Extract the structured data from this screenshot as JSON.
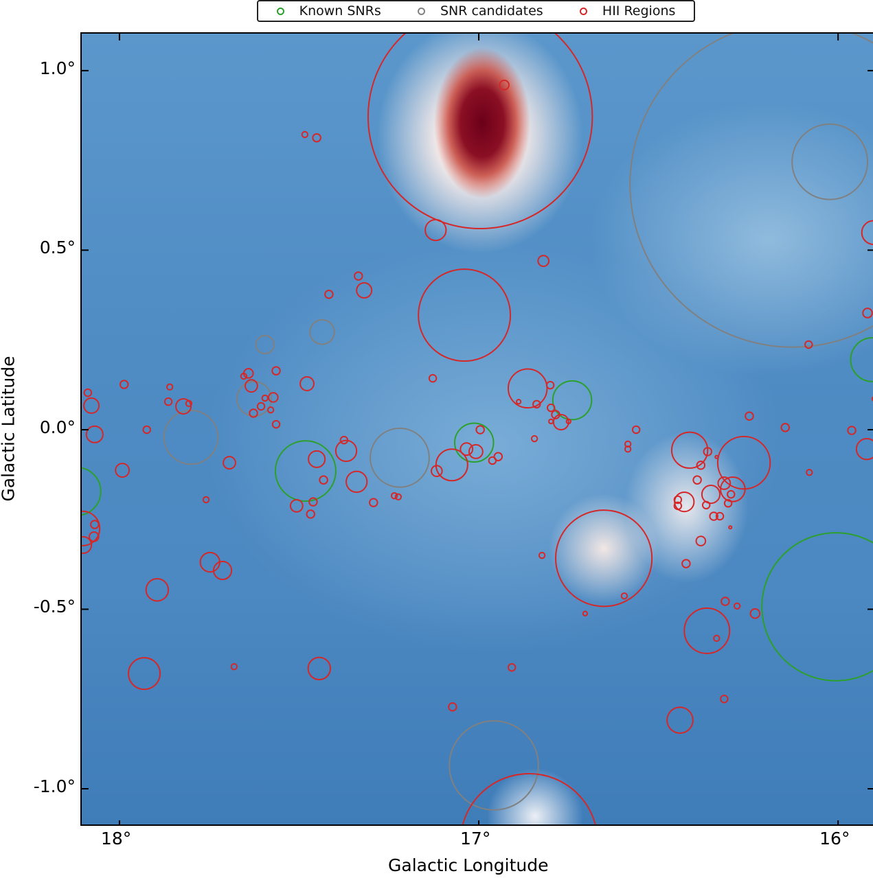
{
  "chart_data": {
    "type": "scatter",
    "xlabel": "Galactic Longitude",
    "ylabel": "Galactic Latitude",
    "xlim": [
      18.105,
      15.899
    ],
    "ylim": [
      -1.107,
      1.103
    ],
    "xticks": [
      {
        "value": 18,
        "label": "18°"
      },
      {
        "value": 17,
        "label": "17°"
      },
      {
        "value": 16,
        "label": "16°"
      }
    ],
    "yticks": [
      {
        "value": 1.0,
        "label": "1.0°"
      },
      {
        "value": 0.5,
        "label": "0.5°"
      },
      {
        "value": 0.0,
        "label": "0.0°"
      },
      {
        "value": -0.5,
        "label": "-0.5°"
      },
      {
        "value": -1.0,
        "label": "-1.0°"
      }
    ],
    "legend": {
      "placement": "top-center",
      "entries": [
        "Known SNRs",
        "SNR candidates",
        "HII Regions"
      ]
    },
    "series": [
      {
        "name": "Known SNRs",
        "color": "#2ca02c",
        "circles": [
          [
            16.74,
            0.082,
            0.054
          ],
          [
            17.013,
            -0.036,
            0.054
          ],
          [
            17.482,
            -0.115,
            0.084
          ],
          [
            16.006,
            -0.493,
            0.206
          ],
          [
            15.904,
            0.195,
            0.061
          ],
          [
            18.119,
            -0.172,
            0.067
          ]
        ]
      },
      {
        "name": "SNR candidates",
        "color": "#808080",
        "circles": [
          [
            16.126,
            0.683,
            0.453
          ],
          [
            16.023,
            0.746,
            0.105
          ],
          [
            17.22,
            -0.078,
            0.082
          ],
          [
            17.801,
            -0.021,
            0.075
          ],
          [
            17.436,
            0.272,
            0.034
          ],
          [
            17.595,
            0.237,
            0.025
          ],
          [
            17.625,
            0.086,
            0.048
          ],
          [
            16.958,
            -0.935,
            0.124
          ]
        ]
      },
      {
        "name": "HII Regions",
        "color": "#d62728",
        "circles": [
          [
            16.996,
            0.872,
            0.312
          ],
          [
            17.04,
            0.319,
            0.128
          ],
          [
            16.652,
            -0.358,
            0.134
          ],
          [
            16.86,
            -1.149,
            0.191
          ],
          [
            17.12,
            0.556,
            0.029
          ],
          [
            16.929,
            0.96,
            0.013
          ],
          [
            17.451,
            0.813,
            0.011
          ],
          [
            17.484,
            0.822,
            0.008
          ],
          [
            16.82,
            0.47,
            0.015
          ],
          [
            17.335,
            0.428,
            0.011
          ],
          [
            17.319,
            0.388,
            0.021
          ],
          [
            17.417,
            0.377,
            0.011
          ],
          [
            15.918,
            0.325,
            0.013
          ],
          [
            15.901,
            0.549,
            0.033
          ],
          [
            16.082,
            0.237,
            0.01
          ],
          [
            16.864,
            0.115,
            0.054
          ],
          [
            17.128,
            0.143,
            0.01
          ],
          [
            17.478,
            0.128,
            0.019
          ],
          [
            17.564,
            0.164,
            0.011
          ],
          [
            17.641,
            0.157,
            0.013
          ],
          [
            17.633,
            0.122,
            0.017
          ],
          [
            17.654,
            0.149,
            0.008
          ],
          [
            17.987,
            0.126,
            0.011
          ],
          [
            17.86,
            0.119,
            0.008
          ],
          [
            18.088,
            0.103,
            0.01
          ],
          [
            18.078,
            0.067,
            0.021
          ],
          [
            17.864,
            0.078,
            0.01
          ],
          [
            17.822,
            0.065,
            0.021
          ],
          [
            17.807,
            0.073,
            0.008
          ],
          [
            18.069,
            -0.013,
            0.023
          ],
          [
            17.924,
            0.0,
            0.01
          ],
          [
            17.992,
            -0.113,
            0.019
          ],
          [
            17.694,
            -0.092,
            0.017
          ],
          [
            17.627,
            0.046,
            0.011
          ],
          [
            17.606,
            0.065,
            0.01
          ],
          [
            17.572,
            0.09,
            0.013
          ],
          [
            17.595,
            0.088,
            0.008
          ],
          [
            17.579,
            0.055,
            0.008
          ],
          [
            17.564,
            0.015,
            0.01
          ],
          [
            17.451,
            -0.082,
            0.023
          ],
          [
            17.432,
            -0.14,
            0.011
          ],
          [
            17.461,
            -0.201,
            0.011
          ],
          [
            17.507,
            -0.212,
            0.017
          ],
          [
            17.468,
            -0.235,
            0.011
          ],
          [
            17.375,
            -0.029,
            0.01
          ],
          [
            17.369,
            -0.059,
            0.029
          ],
          [
            17.34,
            -0.145,
            0.029
          ],
          [
            17.293,
            -0.203,
            0.011
          ],
          [
            17.235,
            -0.184,
            0.008
          ],
          [
            17.224,
            -0.187,
            0.008
          ],
          [
            17.759,
            -0.195,
            0.008
          ],
          [
            18.069,
            -0.264,
            0.011
          ],
          [
            18.071,
            -0.298,
            0.013
          ],
          [
            18.101,
            -0.321,
            0.023
          ],
          [
            18.103,
            -0.275,
            0.048
          ],
          [
            17.748,
            -0.369,
            0.027
          ],
          [
            17.713,
            -0.392,
            0.025
          ],
          [
            17.895,
            -0.446,
            0.031
          ],
          [
            17.931,
            -0.679,
            0.044
          ],
          [
            17.681,
            -0.66,
            0.008
          ],
          [
            17.444,
            -0.665,
            0.031
          ],
          [
            17.073,
            -0.772,
            0.011
          ],
          [
            16.908,
            -0.662,
            0.01
          ],
          [
            17.117,
            -0.115,
            0.015
          ],
          [
            17.075,
            -0.098,
            0.044
          ],
          [
            17.034,
            -0.054,
            0.017
          ],
          [
            17.008,
            -0.061,
            0.019
          ],
          [
            16.996,
            0.0,
            0.011
          ],
          [
            16.962,
            -0.086,
            0.01
          ],
          [
            16.946,
            -0.075,
            0.011
          ],
          [
            16.889,
            0.078,
            0.006
          ],
          [
            16.839,
            0.071,
            0.01
          ],
          [
            16.801,
            0.124,
            0.01
          ],
          [
            16.799,
            0.061,
            0.01
          ],
          [
            16.786,
            0.042,
            0.011
          ],
          [
            16.799,
            0.023,
            0.006
          ],
          [
            16.771,
            0.021,
            0.021
          ],
          [
            16.75,
            0.023,
            0.006
          ],
          [
            16.845,
            -0.025,
            0.008
          ],
          [
            16.824,
            -0.35,
            0.008
          ],
          [
            16.704,
            -0.512,
            0.006
          ],
          [
            16.595,
            -0.463,
            0.008
          ],
          [
            16.585,
            -0.04,
            0.008
          ],
          [
            16.585,
            -0.054,
            0.008
          ],
          [
            16.562,
            0.0,
            0.01
          ],
          [
            16.413,
            -0.057,
            0.05
          ],
          [
            16.363,
            -0.061,
            0.011
          ],
          [
            16.262,
            -0.092,
            0.073
          ],
          [
            16.382,
            -0.099,
            0.011
          ],
          [
            16.392,
            -0.14,
            0.011
          ],
          [
            16.354,
            -0.18,
            0.025
          ],
          [
            16.293,
            -0.166,
            0.034
          ],
          [
            16.317,
            -0.149,
            0.017
          ],
          [
            16.298,
            -0.18,
            0.01
          ],
          [
            16.428,
            -0.201,
            0.027
          ],
          [
            16.446,
            -0.195,
            0.01
          ],
          [
            16.446,
            -0.212,
            0.01
          ],
          [
            16.367,
            -0.21,
            0.01
          ],
          [
            16.306,
            -0.205,
            0.01
          ],
          [
            16.346,
            -0.241,
            0.011
          ],
          [
            16.329,
            -0.241,
            0.01
          ],
          [
            16.338,
            -0.076,
            0.004
          ],
          [
            16.3,
            -0.272,
            0.004
          ],
          [
            16.382,
            -0.31,
            0.013
          ],
          [
            16.423,
            -0.373,
            0.011
          ],
          [
            16.365,
            -0.56,
            0.063
          ],
          [
            16.314,
            -0.478,
            0.011
          ],
          [
            16.281,
            -0.491,
            0.008
          ],
          [
            16.338,
            -0.581,
            0.008
          ],
          [
            16.231,
            -0.512,
            0.013
          ],
          [
            16.317,
            -0.75,
            0.01
          ],
          [
            16.44,
            -0.809,
            0.036
          ],
          [
            16.247,
            0.038,
            0.011
          ],
          [
            16.147,
            0.006,
            0.011
          ],
          [
            16.08,
            -0.119,
            0.008
          ],
          [
            15.962,
            -0.002,
            0.011
          ],
          [
            15.92,
            -0.054,
            0.029
          ],
          [
            15.899,
            0.086,
            0.006
          ]
        ]
      }
    ]
  }
}
